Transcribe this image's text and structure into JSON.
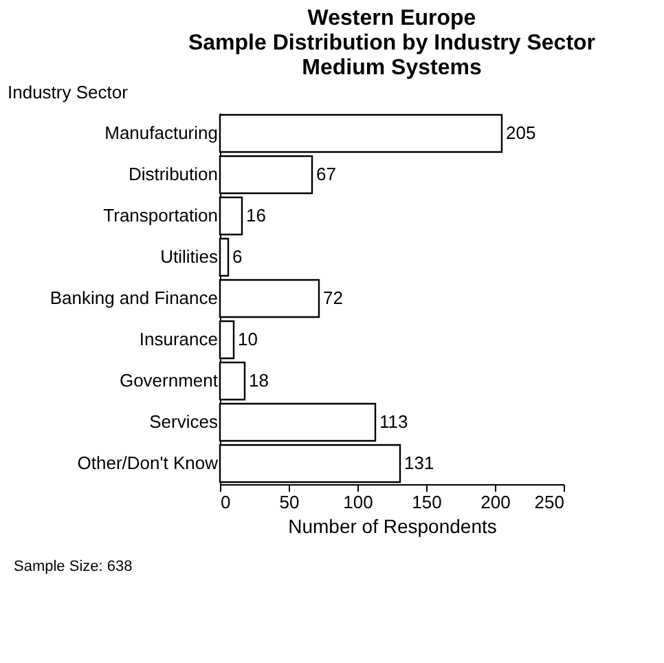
{
  "chart_data": {
    "type": "bar",
    "orientation": "horizontal",
    "title": "Western Europe\nSample Distribution by Industry Sector\nMedium Systems",
    "ylabel": "Industry Sector",
    "xlabel": "Number of Respondents",
    "categories": [
      "Manufacturing",
      "Distribution",
      "Transportation",
      "Utilities",
      "Banking and Finance",
      "Insurance",
      "Government",
      "Services",
      "Other/Don't Know"
    ],
    "values": [
      205,
      67,
      16,
      6,
      72,
      10,
      18,
      113,
      131
    ],
    "color": "#ffffff",
    "xlim": [
      0,
      250
    ],
    "xticks": [
      0,
      50,
      100,
      150,
      200,
      250
    ],
    "grid": false,
    "data_labels": true,
    "annotations": [
      "Sample Size: 638"
    ]
  }
}
